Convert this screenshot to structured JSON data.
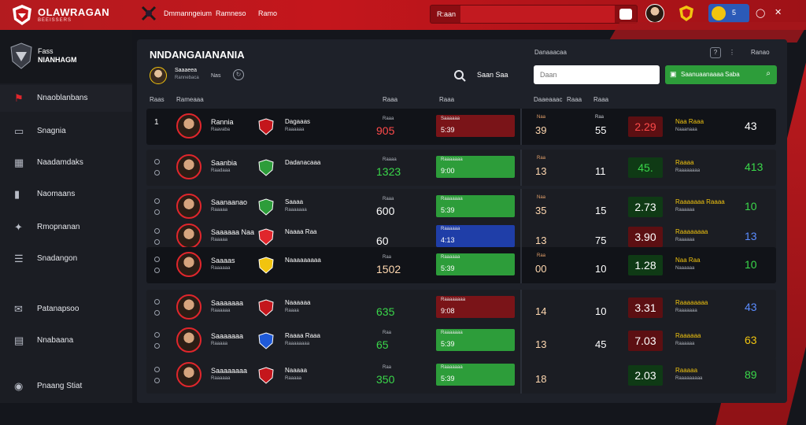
{
  "topbar": {
    "brand": "OLAWRAGAN",
    "brand_sub": "BEEISSERS",
    "links": [
      "Dmmanngeium",
      "Ramneso",
      "Ramo"
    ],
    "search_label": "R:aan",
    "user_count": "5"
  },
  "sidebar": {
    "title1": "Fass",
    "title2": "NIANHAGM",
    "items": [
      {
        "label": "Nnaoblanbans"
      },
      {
        "label": "Snagnia"
      },
      {
        "label": "Naadamdaks"
      },
      {
        "label": "Naomaans"
      },
      {
        "label": "Rmopnanan"
      },
      {
        "label": "Snadangon"
      },
      {
        "label": "Patanapsoo"
      },
      {
        "label": "Nnabaana"
      },
      {
        "label": "Pnaang Stiat"
      }
    ]
  },
  "panel": {
    "title": "NNDANGAIANANIA",
    "user_name": "Saaaeea",
    "user_sub": "Rannebaca",
    "user_id": "Nas",
    "filter_label": "Saan Saa",
    "header_right": "Danaaacaa",
    "header_right_txt": "Ranao",
    "search_placeholder": "Daan",
    "green_btn_1": "Saanuaanaaaa",
    "green_btn_2": "Saba",
    "col_headers": [
      "Raas",
      "Rameaaa",
      "Raaa",
      "Raaa",
      "Daaeaaac",
      "Raaa",
      "Raaa"
    ]
  },
  "rows": [
    {
      "rank": "1",
      "name": "Rannia",
      "sub": "Raavaba",
      "team": "Dagaaas",
      "tsub": "Raaaaaa",
      "lbl": "Raaa",
      "num": "905",
      "num_color": "#ff4a4a",
      "bar_bg": "#7a1418",
      "bar_t": "Saaaaaa",
      "bar_v": "5:39",
      "n1l": "Naa",
      "n1": "39",
      "n2l": "Raa",
      "n2": "55",
      "odds": "2.29",
      "odds_bg": "#5c0f12",
      "odds_c": "#ff4a4a",
      "tag": "Naa Raaa",
      "tags": "Naaanaaa",
      "last": "43",
      "last_c": "#ffffff",
      "dark": true
    },
    {
      "rank": "",
      "name": "Saanbia",
      "sub": "Raadaaa",
      "team": "Dadanacaaa",
      "tsub": "",
      "lbl": "Raaaa",
      "num": "1323",
      "num_color": "#3ad84a",
      "bar_bg": "#2d9d3a",
      "bar_t": "Raaaaaaa",
      "bar_v": "9:00",
      "n1l": "Raa",
      "n1": "13",
      "n2l": "",
      "n2": "11",
      "odds": "45.",
      "odds_bg": "#0f3a15",
      "odds_c": "#3ad84a",
      "tag": "Raaaa",
      "tags": "Raaaaaaaa",
      "last": "413",
      "last_c": "#3ad84a",
      "dark": false
    },
    {
      "rank": "",
      "name": "Saanaanao",
      "sub": "Raaaaa",
      "team": "Saaaa",
      "tsub": "Raaaaaaa",
      "lbl": "Raaa",
      "num": "600",
      "num_color": "#ffffff",
      "bar_bg": "#2d9d3a",
      "bar_t": "Raaaaaaa",
      "bar_v": "5:39",
      "n1l": "Naa",
      "n1": "35",
      "n2l": "",
      "n2": "15",
      "odds": "2.73",
      "odds_bg": "#0f3a15",
      "odds_c": "#ffffff",
      "tag": "Raaaaaaa Raaaa",
      "tags": "Raaaaaa",
      "last": "10",
      "last_c": "#3ad84a",
      "dark": false
    },
    {
      "rank": "",
      "name": "Saaaaaa Naa",
      "sub": "Raaaaa",
      "team": "Naaaa Raa",
      "tsub": "",
      "lbl": "",
      "num": "60",
      "num_color": "#ffffff",
      "bar_bg": "#1f3ea8",
      "bar_t": "Raaaaaa",
      "bar_v": "4:13",
      "n1l": "",
      "n1": "13",
      "n2l": "",
      "n2": "75",
      "odds": "3.90",
      "odds_bg": "#5c0f12",
      "odds_c": "#ffffff",
      "tag": "Raaaaaaaa",
      "tags": "Raaaaaa",
      "last": "13",
      "last_c": "#5a8cff",
      "dark": false
    },
    {
      "rank": "",
      "name": "Saaaas",
      "sub": "Raaaaaa",
      "team": "Naaaaaaaaa",
      "tsub": "",
      "lbl": "Raa",
      "num": "1502",
      "num_color": "#ffd8b0",
      "bar_bg": "#2d9d3a",
      "bar_t": "Raaaaaa",
      "bar_v": "5:39",
      "n1l": "Raa",
      "n1": "00",
      "n2l": "",
      "n2": "10",
      "odds": "1.28",
      "odds_bg": "#0f3a15",
      "odds_c": "#ffffff",
      "tag": "Naa Raa",
      "tags": "Naaaaaa",
      "last": "10",
      "last_c": "#3ad84a",
      "dark": true
    },
    {
      "rank": "",
      "name": "Saaaaaaa",
      "sub": "Raaaaaa",
      "team": "Naaaaaa",
      "tsub": "Raaaa",
      "lbl": "",
      "num": "635",
      "num_color": "#3ad84a",
      "bar_bg": "#7a1418",
      "bar_t": "Raaaaaaaa",
      "bar_v": "9:08",
      "n1l": "",
      "n1": "14",
      "n2l": "",
      "n2": "10",
      "odds": "3.31",
      "odds_bg": "#5c0f12",
      "odds_c": "#ffffff",
      "tag": "Raaaaaaaa",
      "tags": "Raaaaaaa",
      "last": "43",
      "last_c": "#5a8cff",
      "dark": false
    },
    {
      "rank": "",
      "name": "Saaaaaaa",
      "sub": "Raaaaa",
      "team": "Raaaa Raaa",
      "tsub": "Raaaaaaaa",
      "lbl": "Raa",
      "num": "65",
      "num_color": "#3ad84a",
      "bar_bg": "#2d9d3a",
      "bar_t": "Raaaaaaa",
      "bar_v": "5:39",
      "n1l": "",
      "n1": "13",
      "n2l": "",
      "n2": "45",
      "odds": "7.03",
      "odds_bg": "#5c0f12",
      "odds_c": "#ffffff",
      "tag": "Raaaaaa",
      "tags": "Raaaaaa",
      "last": "63",
      "last_c": "#f1c40f",
      "dark": false
    },
    {
      "rank": "",
      "name": "Saaaaaaaa",
      "sub": "Raaaaaa",
      "team": "Naaaaa",
      "tsub": "Raaaaa",
      "lbl": "Raa",
      "num": "350",
      "num_color": "#3ad84a",
      "bar_bg": "#2d9d3a",
      "bar_t": "Raaaaaaa",
      "bar_v": "5:39",
      "n1l": "",
      "n1": "18",
      "n2l": "",
      "n2": "",
      "odds": "2.03",
      "odds_bg": "#0f3a15",
      "odds_c": "#ffffff",
      "tag": "Raaaaa",
      "tags": "Raaaaaaaaa",
      "last": "89",
      "last_c": "#3ad84a",
      "dark": false
    }
  ],
  "colors": {
    "accent": "#c4161c",
    "green": "#2d9d3a",
    "blue": "#1f3ea8"
  }
}
